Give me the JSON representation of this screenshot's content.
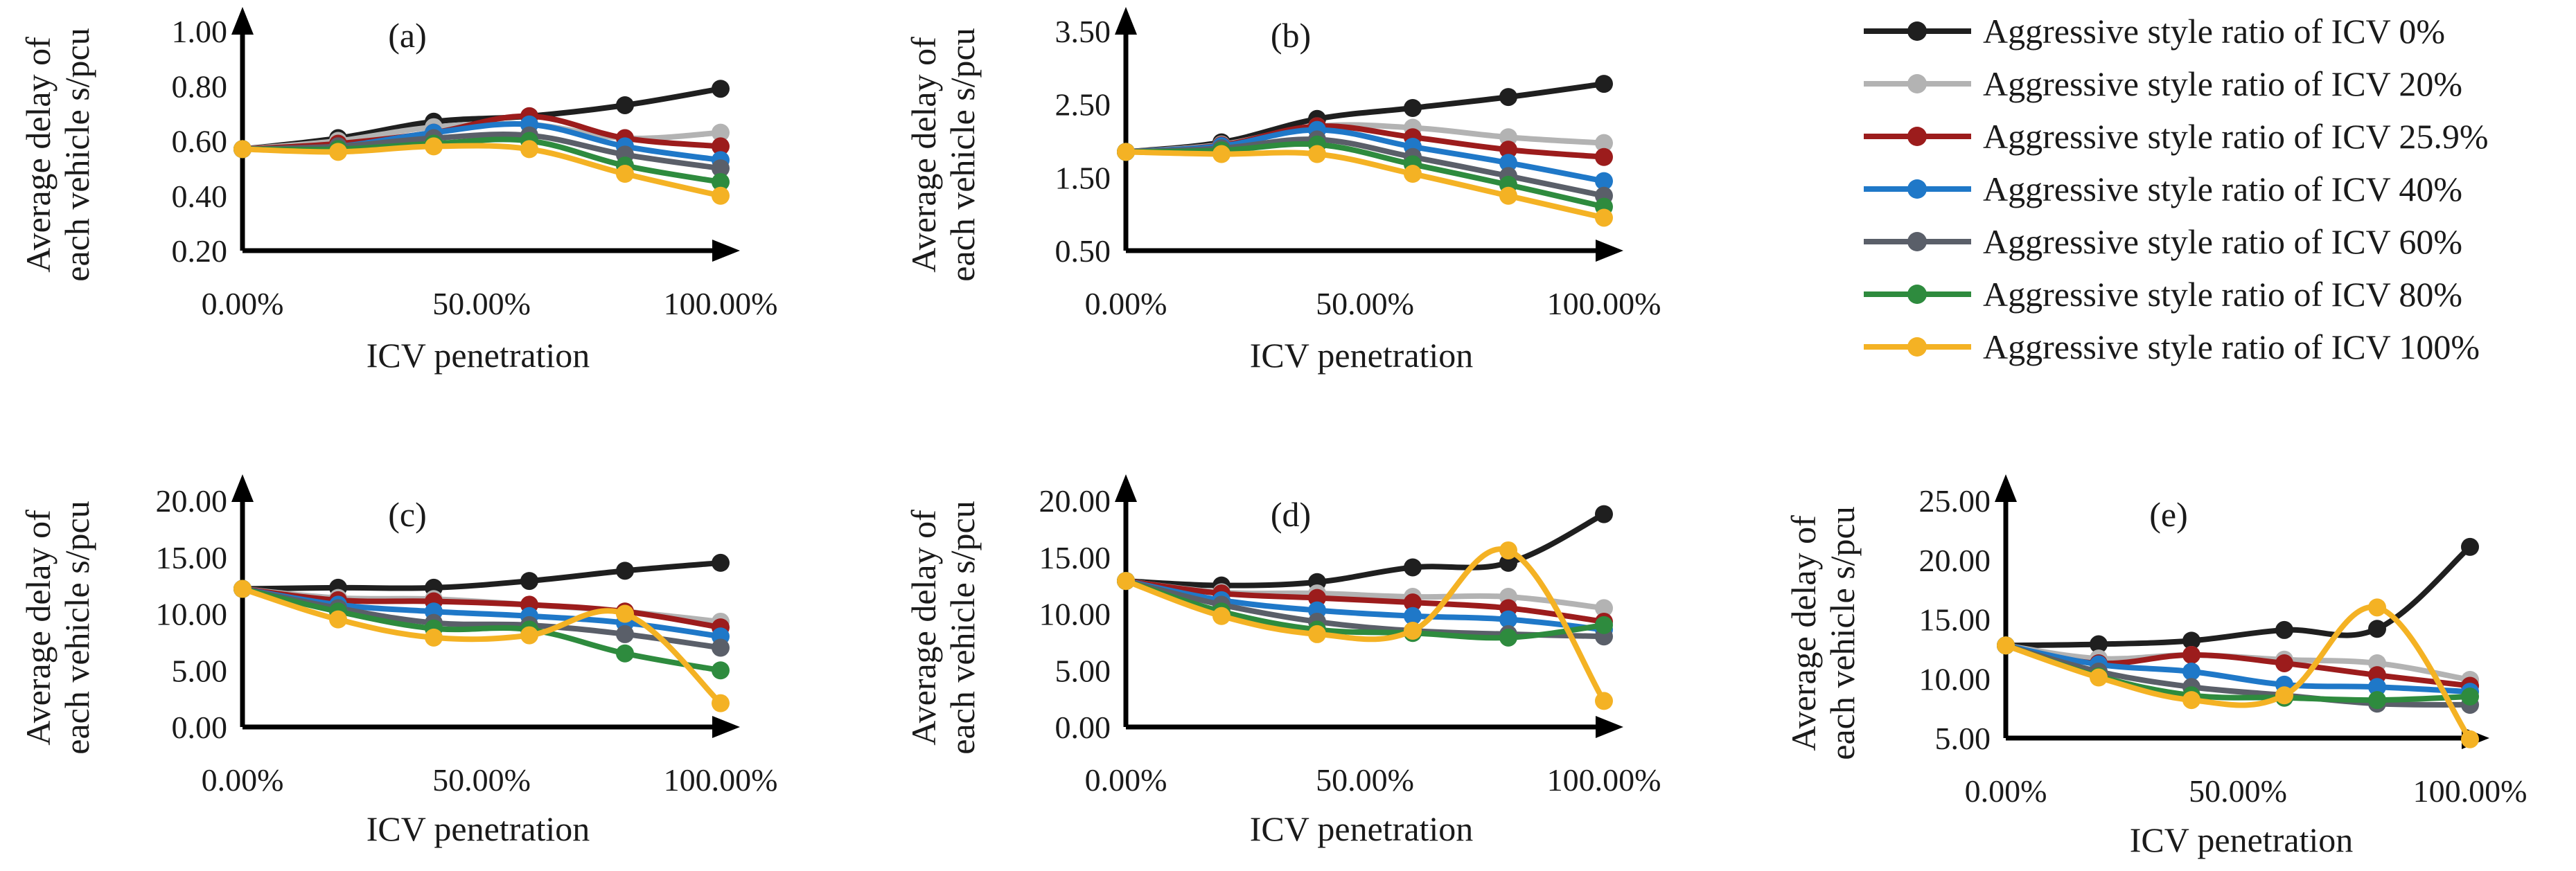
{
  "figure": {
    "legend_entries": [
      {
        "label": "Aggressive style ratio of ICV 0%",
        "color": "#1f1f1f"
      },
      {
        "label": "Aggressive style ratio of ICV 20%",
        "color": "#b3b3b3"
      },
      {
        "label": "Aggressive style ratio of ICV 25.9%",
        "color": "#9c1c1c"
      },
      {
        "label": "Aggressive style ratio of ICV 40%",
        "color": "#1f78c8"
      },
      {
        "label": "Aggressive style ratio of ICV 60%",
        "color": "#5a5f69"
      },
      {
        "label": "Aggressive style ratio of ICV 80%",
        "color": "#2e8b3e"
      },
      {
        "label": "Aggressive style ratio of ICV 100%",
        "color": "#f4b224"
      }
    ]
  },
  "chart_data": [
    {
      "type": "line",
      "panel": "(a)",
      "xlabel": "ICV penetration",
      "ylabel": [
        "Average delay of",
        "each vehicle s/pcu"
      ],
      "x": [
        0,
        20,
        40,
        60,
        80,
        100
      ],
      "xticks": [
        0,
        50,
        100
      ],
      "xtick_labels": [
        "0.00%",
        "50.00%",
        "100.00%"
      ],
      "ylim": [
        0.2,
        1.0
      ],
      "yticks": [
        0.2,
        0.4,
        0.6,
        0.8,
        1.0
      ],
      "ytick_labels": [
        "0.20",
        "0.40",
        "0.60",
        "0.80",
        "1.00"
      ],
      "series": [
        {
          "name": "Aggressive style ratio of ICV 0%",
          "values": [
            0.57,
            0.61,
            0.67,
            0.69,
            0.73,
            0.79
          ]
        },
        {
          "name": "Aggressive style ratio of ICV 20%",
          "values": [
            0.57,
            0.6,
            0.65,
            0.66,
            0.61,
            0.63
          ]
        },
        {
          "name": "Aggressive style ratio of ICV 25.9%",
          "values": [
            0.57,
            0.59,
            0.63,
            0.69,
            0.61,
            0.58
          ]
        },
        {
          "name": "Aggressive style ratio of ICV 40%",
          "values": [
            0.57,
            0.58,
            0.63,
            0.66,
            0.58,
            0.53
          ]
        },
        {
          "name": "Aggressive style ratio of ICV 60%",
          "values": [
            0.57,
            0.58,
            0.61,
            0.62,
            0.55,
            0.5
          ]
        },
        {
          "name": "Aggressive style ratio of ICV 80%",
          "values": [
            0.57,
            0.57,
            0.59,
            0.6,
            0.51,
            0.45
          ]
        },
        {
          "name": "Aggressive style ratio of ICV 100%",
          "values": [
            0.57,
            0.56,
            0.58,
            0.57,
            0.48,
            0.4
          ]
        }
      ]
    },
    {
      "type": "line",
      "panel": "(b)",
      "xlabel": "ICV penetration",
      "ylabel": [
        "Average delay of",
        "each vehicle s/pcu"
      ],
      "x": [
        0,
        20,
        40,
        60,
        80,
        100
      ],
      "xticks": [
        0,
        50,
        100
      ],
      "xtick_labels": [
        "0.00%",
        "50.00%",
        "100.00%"
      ],
      "ylim": [
        0.5,
        3.5
      ],
      "yticks": [
        0.5,
        1.5,
        2.5,
        3.5
      ],
      "ytick_labels": [
        "0.50",
        "1.50",
        "2.50",
        "3.50"
      ],
      "series": [
        {
          "name": "Aggressive style ratio of ICV 0%",
          "values": [
            1.85,
            1.98,
            2.3,
            2.45,
            2.6,
            2.78
          ]
        },
        {
          "name": "Aggressive style ratio of ICV 20%",
          "values": [
            1.85,
            1.95,
            2.2,
            2.18,
            2.05,
            1.97
          ]
        },
        {
          "name": "Aggressive style ratio of ICV 25.9%",
          "values": [
            1.85,
            1.94,
            2.2,
            2.05,
            1.88,
            1.78
          ]
        },
        {
          "name": "Aggressive style ratio of ICV 40%",
          "values": [
            1.85,
            1.93,
            2.15,
            1.92,
            1.7,
            1.45
          ]
        },
        {
          "name": "Aggressive style ratio of ICV 60%",
          "values": [
            1.85,
            1.9,
            2.02,
            1.78,
            1.52,
            1.25
          ]
        },
        {
          "name": "Aggressive style ratio of ICV 80%",
          "values": [
            1.85,
            1.87,
            1.95,
            1.68,
            1.4,
            1.1
          ]
        },
        {
          "name": "Aggressive style ratio of ICV 100%",
          "values": [
            1.85,
            1.82,
            1.82,
            1.55,
            1.25,
            0.95
          ]
        }
      ]
    },
    {
      "type": "line",
      "panel": "(c)",
      "xlabel": "ICV penetration",
      "ylabel": [
        "Average delay of",
        "each vehicle s/pcu"
      ],
      "x": [
        0,
        20,
        40,
        60,
        80,
        100
      ],
      "xticks": [
        0,
        50,
        100
      ],
      "xtick_labels": [
        "0.00%",
        "50.00%",
        "100.00%"
      ],
      "ylim": [
        0,
        20
      ],
      "yticks": [
        0,
        5,
        10,
        15,
        20
      ],
      "ytick_labels": [
        "0.00",
        "5.00",
        "10.00",
        "15.00",
        "20.00"
      ],
      "series": [
        {
          "name": "Aggressive style ratio of ICV 0%",
          "values": [
            12.2,
            12.3,
            12.3,
            12.9,
            13.8,
            14.5
          ]
        },
        {
          "name": "Aggressive style ratio of ICV 20%",
          "values": [
            12.2,
            11.4,
            11.3,
            10.8,
            10.2,
            9.3
          ]
        },
        {
          "name": "Aggressive style ratio of ICV 25.9%",
          "values": [
            12.2,
            11.2,
            11.1,
            10.8,
            10.2,
            8.8
          ]
        },
        {
          "name": "Aggressive style ratio of ICV 40%",
          "values": [
            12.2,
            10.8,
            10.2,
            9.8,
            9.2,
            8.0
          ]
        },
        {
          "name": "Aggressive style ratio of ICV 60%",
          "values": [
            12.2,
            10.5,
            9.2,
            9.0,
            8.2,
            7.0
          ]
        },
        {
          "name": "Aggressive style ratio of ICV 80%",
          "values": [
            12.2,
            10.2,
            8.7,
            8.6,
            6.5,
            5.0
          ]
        },
        {
          "name": "Aggressive style ratio of ICV 100%",
          "values": [
            12.2,
            9.5,
            7.9,
            8.1,
            10.0,
            2.1
          ]
        }
      ]
    },
    {
      "type": "line",
      "panel": "(d)",
      "xlabel": "ICV penetration",
      "ylabel": [
        "Average delay of",
        "each vehicle s/pcu"
      ],
      "x": [
        0,
        20,
        40,
        60,
        80,
        100
      ],
      "xticks": [
        0,
        50,
        100
      ],
      "xtick_labels": [
        "0.00%",
        "50.00%",
        "100.00%"
      ],
      "ylim": [
        0,
        20
      ],
      "yticks": [
        0,
        5,
        10,
        15,
        20
      ],
      "ytick_labels": [
        "0.00",
        "5.00",
        "10.00",
        "15.00",
        "20.00"
      ],
      "series": [
        {
          "name": "Aggressive style ratio of ICV 0%",
          "values": [
            12.9,
            12.5,
            12.8,
            14.1,
            14.5,
            18.8
          ]
        },
        {
          "name": "Aggressive style ratio of ICV 20%",
          "values": [
            12.9,
            11.9,
            11.8,
            11.5,
            11.5,
            10.5
          ]
        },
        {
          "name": "Aggressive style ratio of ICV 25.9%",
          "values": [
            12.9,
            11.8,
            11.4,
            11.0,
            10.5,
            9.3
          ]
        },
        {
          "name": "Aggressive style ratio of ICV 40%",
          "values": [
            12.9,
            11.2,
            10.3,
            9.8,
            9.5,
            8.6
          ]
        },
        {
          "name": "Aggressive style ratio of ICV 60%",
          "values": [
            12.9,
            10.8,
            9.3,
            8.5,
            8.2,
            8.0
          ]
        },
        {
          "name": "Aggressive style ratio of ICV 80%",
          "values": [
            12.9,
            10.2,
            8.6,
            8.3,
            7.9,
            9.0
          ]
        },
        {
          "name": "Aggressive style ratio of ICV 100%",
          "values": [
            12.9,
            9.8,
            8.2,
            8.5,
            15.6,
            2.3
          ]
        }
      ]
    },
    {
      "type": "line",
      "panel": "(e)",
      "xlabel": "ICV penetration",
      "ylabel": [
        "Average delay of",
        "each vehicle s/pcu"
      ],
      "x": [
        0,
        20,
        40,
        60,
        80,
        100
      ],
      "xticks": [
        0,
        50,
        100
      ],
      "xtick_labels": [
        "0.00%",
        "50.00%",
        "100.00%"
      ],
      "ylim": [
        5,
        25
      ],
      "yticks": [
        5,
        10,
        15,
        20,
        25
      ],
      "ytick_labels": [
        "5.00",
        "10.00",
        "15.00",
        "20.00",
        "25.00"
      ],
      "series": [
        {
          "name": "Aggressive style ratio of ICV 0%",
          "values": [
            12.8,
            12.9,
            13.2,
            14.1,
            14.2,
            21.1
          ]
        },
        {
          "name": "Aggressive style ratio of ICV 20%",
          "values": [
            12.8,
            11.7,
            12.0,
            11.6,
            11.3,
            9.9
          ]
        },
        {
          "name": "Aggressive style ratio of ICV 25.9%",
          "values": [
            12.8,
            11.3,
            12.0,
            11.3,
            10.3,
            9.4
          ]
        },
        {
          "name": "Aggressive style ratio of ICV 40%",
          "values": [
            12.8,
            11.2,
            10.6,
            9.5,
            9.3,
            8.9
          ]
        },
        {
          "name": "Aggressive style ratio of ICV 60%",
          "values": [
            12.8,
            10.6,
            9.3,
            8.6,
            7.9,
            7.8
          ]
        },
        {
          "name": "Aggressive style ratio of ICV 80%",
          "values": [
            12.8,
            10.2,
            8.6,
            8.4,
            8.2,
            8.5
          ]
        },
        {
          "name": "Aggressive style ratio of ICV 100%",
          "values": [
            12.8,
            10.1,
            8.2,
            8.6,
            16.0,
            4.9
          ]
        }
      ]
    }
  ]
}
